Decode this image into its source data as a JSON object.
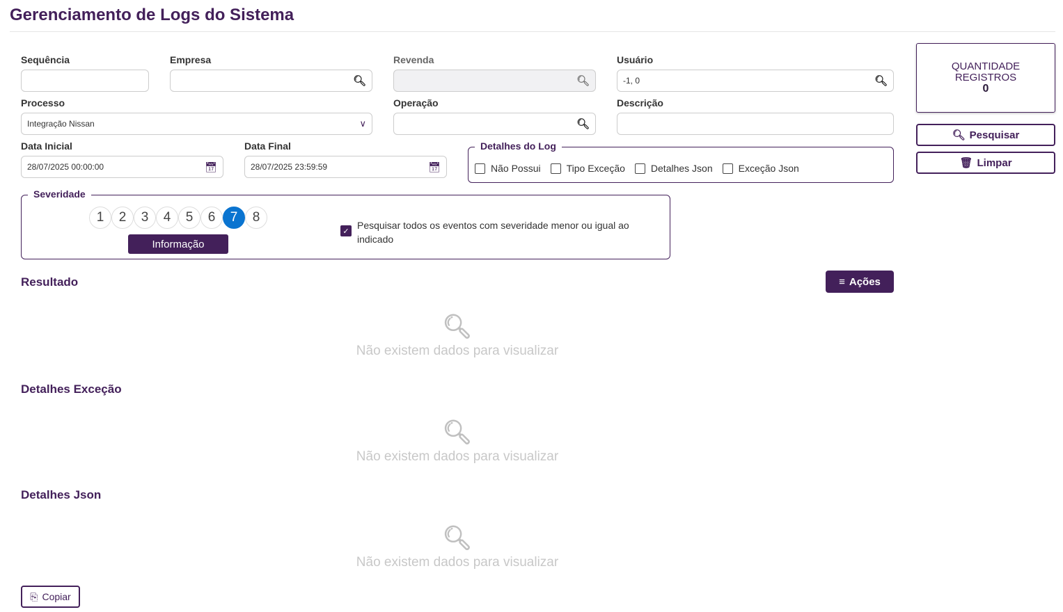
{
  "title": "Gerenciamento de Logs do Sistema",
  "filters": {
    "sequencia": {
      "label": "Sequência",
      "value": ""
    },
    "empresa": {
      "label": "Empresa",
      "value": ""
    },
    "revenda": {
      "label": "Revenda",
      "value": ""
    },
    "usuario": {
      "label": "Usuário",
      "value": "-1, 0"
    },
    "processo": {
      "label": "Processo",
      "value": "Integração Nissan"
    },
    "operacao": {
      "label": "Operação",
      "value": ""
    },
    "descricao": {
      "label": "Descrição",
      "value": ""
    },
    "data_inicial": {
      "label": "Data Inicial",
      "value": "28/07/2025 00:00:00"
    },
    "data_final": {
      "label": "Data Final",
      "value": "28/07/2025 23:59:59"
    }
  },
  "detalhes_log": {
    "legend": "Detalhes do Log",
    "options": [
      "Não Possui",
      "Tipo Exceção",
      "Detalhes Json",
      "Exceção Json"
    ]
  },
  "severidade": {
    "legend": "Severidade",
    "levels": [
      "1",
      "2",
      "3",
      "4",
      "5",
      "6",
      "7",
      "8"
    ],
    "selected": "7",
    "selected_label": "Informação",
    "checkbox_label": "Pesquisar todos os eventos com severidade menor ou igual ao indicado",
    "checkbox_checked": true
  },
  "counter": {
    "line1": "QUANTIDADE",
    "line2": "REGISTROS",
    "value": "0"
  },
  "buttons": {
    "pesquisar": "Pesquisar",
    "limpar": "Limpar",
    "acoes": "Ações",
    "copiar": "Copiar"
  },
  "sections": {
    "resultado": "Resultado",
    "detalhes_excecao": "Detalhes Exceção",
    "detalhes_json": "Detalhes Json",
    "empty": "Não existem dados para visualizar"
  },
  "colors": {
    "primary": "#43205a",
    "selected": "#0a74d0"
  }
}
